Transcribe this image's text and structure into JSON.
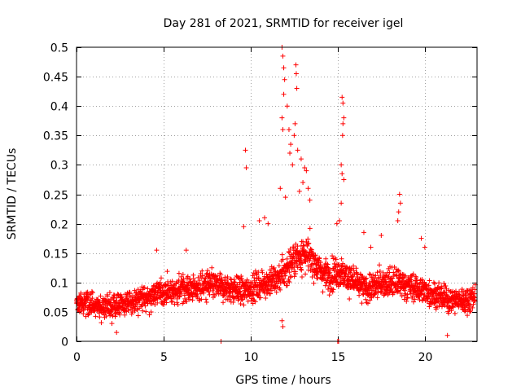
{
  "chart_data": {
    "type": "scatter",
    "title": "Day 281 of 2021, SRMTID for receiver igel",
    "xlabel": "GPS time / hours",
    "ylabel": "SRMTID / TECUs",
    "xlim": [
      0,
      23
    ],
    "ylim": [
      0,
      0.5
    ],
    "x_ticks": [
      0,
      5,
      10,
      15,
      20
    ],
    "x_tick_labels": [
      "0",
      "5",
      "10",
      "15",
      "20"
    ],
    "y_ticks": [
      0,
      0.05,
      0.1,
      0.15,
      0.2,
      0.25,
      0.3,
      0.35,
      0.4,
      0.45,
      0.5
    ],
    "y_tick_labels": [
      "0",
      "0.05",
      "0.1",
      "0.15",
      "0.2",
      "0.25",
      "0.3",
      "0.35",
      "0.4",
      "0.45",
      "0.5"
    ],
    "grid": true,
    "marker": "plus",
    "series": [
      {
        "name": "igel",
        "color": "#ff0000",
        "base_profile": {
          "x": [
            0,
            0.5,
            1,
            1.5,
            2,
            2.5,
            3,
            3.5,
            4,
            4.5,
            5,
            5.5,
            6,
            6.5,
            7,
            7.5,
            8,
            8.5,
            9,
            9.5,
            10,
            10.5,
            11,
            11.5,
            12,
            12.5,
            13,
            13.5,
            14,
            14.5,
            15,
            15.5,
            16,
            16.5,
            17,
            17.5,
            18,
            18.5,
            19,
            19.5,
            20,
            20.5,
            21,
            21.5,
            22,
            22.5,
            22.9
          ],
          "y": [
            0.065,
            0.065,
            0.06,
            0.06,
            0.06,
            0.06,
            0.065,
            0.07,
            0.075,
            0.08,
            0.085,
            0.085,
            0.09,
            0.09,
            0.09,
            0.095,
            0.095,
            0.09,
            0.09,
            0.085,
            0.09,
            0.095,
            0.1,
            0.105,
            0.12,
            0.14,
            0.15,
            0.14,
            0.12,
            0.11,
            0.12,
            0.11,
            0.1,
            0.09,
            0.09,
            0.1,
            0.1,
            0.1,
            0.095,
            0.09,
            0.085,
            0.08,
            0.075,
            0.07,
            0.07,
            0.07,
            0.08
          ]
        },
        "outliers": [
          {
            "x": 9.7,
            "y": 0.325
          },
          {
            "x": 9.75,
            "y": 0.295
          },
          {
            "x": 9.6,
            "y": 0.195
          },
          {
            "x": 11.8,
            "y": 0.5
          },
          {
            "x": 11.85,
            "y": 0.485
          },
          {
            "x": 11.9,
            "y": 0.465
          },
          {
            "x": 11.95,
            "y": 0.445
          },
          {
            "x": 11.9,
            "y": 0.42
          },
          {
            "x": 11.8,
            "y": 0.38
          },
          {
            "x": 11.85,
            "y": 0.36
          },
          {
            "x": 12.1,
            "y": 0.4
          },
          {
            "x": 12.2,
            "y": 0.36
          },
          {
            "x": 12.3,
            "y": 0.335
          },
          {
            "x": 12.25,
            "y": 0.32
          },
          {
            "x": 12.4,
            "y": 0.3
          },
          {
            "x": 12.6,
            "y": 0.47
          },
          {
            "x": 12.62,
            "y": 0.455
          },
          {
            "x": 12.65,
            "y": 0.43
          },
          {
            "x": 12.55,
            "y": 0.37
          },
          {
            "x": 12.5,
            "y": 0.35
          },
          {
            "x": 12.7,
            "y": 0.325
          },
          {
            "x": 12.9,
            "y": 0.31
          },
          {
            "x": 13.1,
            "y": 0.295
          },
          {
            "x": 13.2,
            "y": 0.29
          },
          {
            "x": 13.0,
            "y": 0.27
          },
          {
            "x": 13.3,
            "y": 0.26
          },
          {
            "x": 12.8,
            "y": 0.255
          },
          {
            "x": 11.7,
            "y": 0.26
          },
          {
            "x": 12.0,
            "y": 0.245
          },
          {
            "x": 13.4,
            "y": 0.24
          },
          {
            "x": 15.25,
            "y": 0.415
          },
          {
            "x": 15.3,
            "y": 0.405
          },
          {
            "x": 15.35,
            "y": 0.38
          },
          {
            "x": 15.3,
            "y": 0.37
          },
          {
            "x": 15.28,
            "y": 0.35
          },
          {
            "x": 15.2,
            "y": 0.3
          },
          {
            "x": 15.25,
            "y": 0.285
          },
          {
            "x": 15.35,
            "y": 0.275
          },
          {
            "x": 15.2,
            "y": 0.235
          },
          {
            "x": 15.1,
            "y": 0.205
          },
          {
            "x": 14.95,
            "y": 0.2
          },
          {
            "x": 18.55,
            "y": 0.25
          },
          {
            "x": 18.6,
            "y": 0.235
          },
          {
            "x": 18.5,
            "y": 0.22
          },
          {
            "x": 18.45,
            "y": 0.205
          },
          {
            "x": 10.5,
            "y": 0.205
          },
          {
            "x": 10.8,
            "y": 0.21
          },
          {
            "x": 11.0,
            "y": 0.2
          },
          {
            "x": 16.5,
            "y": 0.185
          },
          {
            "x": 16.9,
            "y": 0.16
          },
          {
            "x": 17.5,
            "y": 0.18
          },
          {
            "x": 19.8,
            "y": 0.175
          },
          {
            "x": 20.0,
            "y": 0.16
          },
          {
            "x": 4.6,
            "y": 0.155
          },
          {
            "x": 6.3,
            "y": 0.155
          },
          {
            "x": 11.8,
            "y": 0.035
          },
          {
            "x": 11.85,
            "y": 0.025
          },
          {
            "x": 2.3,
            "y": 0.015
          },
          {
            "x": 21.3,
            "y": 0.01
          },
          {
            "x": 8.3,
            "y": 0.0
          },
          {
            "x": 15.0,
            "y": 0.0
          },
          {
            "x": 15.05,
            "y": 0.0
          }
        ]
      }
    ]
  }
}
